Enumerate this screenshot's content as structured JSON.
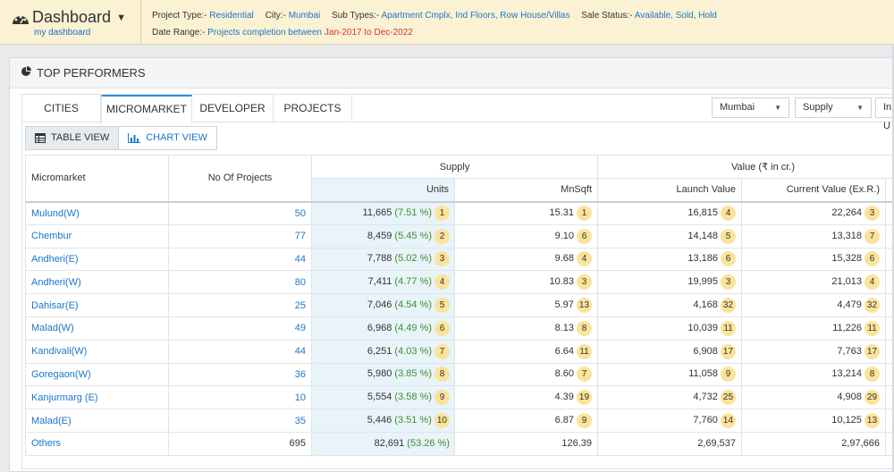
{
  "header": {
    "title": "Dashboard",
    "subtitle": "my dashboard",
    "filters": {
      "project_type_label": "Project Type:-",
      "project_type": "Residential",
      "city_label": "City:-",
      "city": "Mumbai",
      "sub_types_label": "Sub Types:-",
      "sub_types": "Apartment Cmplx, Ind Floors, Row House/Villas",
      "sale_status_label": "Sale Status:-",
      "sale_status": "Available, Sold, Hold",
      "date_range_label": "Date Range:-",
      "date_range_text": "Projects completion between",
      "date_range_value": "Jan-2017 to Dec-2022"
    }
  },
  "panel": {
    "title": "TOP PERFORMERS",
    "tabs": [
      {
        "label": "CITIES"
      },
      {
        "label": "MICROMARKET"
      },
      {
        "label": "DEVELOPER"
      },
      {
        "label": "PROJECTS"
      }
    ],
    "active_tab": "MICROMARKET",
    "selects": {
      "city": "Mumbai",
      "metric": "Supply",
      "unit": "In U"
    },
    "views": {
      "table": "TABLE VIEW",
      "chart": "CHART VIEW"
    }
  },
  "table": {
    "headers": {
      "micromarket": "Micromarket",
      "projects": "No Of Projects",
      "supply": "Supply",
      "units": "Units",
      "mnsqft": "MnSqft",
      "value": "Value (₹ in cr.)",
      "launch_value": "Launch Value",
      "current_value": "Current Value (Ex.R.)"
    },
    "rows": [
      {
        "name": "Mulund(W)",
        "projects": "50",
        "units": "11,665",
        "units_pct": "(7.51 %)",
        "units_rank": "1",
        "mnsqft": "15.31",
        "mnsqft_rank": "1",
        "launch": "16,815",
        "launch_rank": "4",
        "current": "22,264",
        "current_rank": "3"
      },
      {
        "name": "Chembur",
        "projects": "77",
        "units": "8,459",
        "units_pct": "(5.45 %)",
        "units_rank": "2",
        "mnsqft": "9.10",
        "mnsqft_rank": "6",
        "launch": "14,148",
        "launch_rank": "5",
        "current": "13,318",
        "current_rank": "7"
      },
      {
        "name": "Andheri(E)",
        "projects": "44",
        "units": "7,788",
        "units_pct": "(5.02 %)",
        "units_rank": "3",
        "mnsqft": "9.68",
        "mnsqft_rank": "4",
        "launch": "13,186",
        "launch_rank": "6",
        "current": "15,328",
        "current_rank": "6"
      },
      {
        "name": "Andheri(W)",
        "projects": "80",
        "units": "7,411",
        "units_pct": "(4.77 %)",
        "units_rank": "4",
        "mnsqft": "10.83",
        "mnsqft_rank": "3",
        "launch": "19,995",
        "launch_rank": "3",
        "current": "21,013",
        "current_rank": "4"
      },
      {
        "name": "Dahisar(E)",
        "projects": "25",
        "units": "7,046",
        "units_pct": "(4.54 %)",
        "units_rank": "5",
        "mnsqft": "5.97",
        "mnsqft_rank": "13",
        "launch": "4,168",
        "launch_rank": "32",
        "current": "4,479",
        "current_rank": "32"
      },
      {
        "name": "Malad(W)",
        "projects": "49",
        "units": "6,968",
        "units_pct": "(4.49 %)",
        "units_rank": "6",
        "mnsqft": "8.13",
        "mnsqft_rank": "8",
        "launch": "10,039",
        "launch_rank": "11",
        "current": "11,226",
        "current_rank": "11"
      },
      {
        "name": "Kandivali(W)",
        "projects": "44",
        "units": "6,251",
        "units_pct": "(4.03 %)",
        "units_rank": "7",
        "mnsqft": "6.64",
        "mnsqft_rank": "11",
        "launch": "6,908",
        "launch_rank": "17",
        "current": "7,763",
        "current_rank": "17"
      },
      {
        "name": "Goregaon(W)",
        "projects": "36",
        "units": "5,980",
        "units_pct": "(3.85 %)",
        "units_rank": "8",
        "mnsqft": "8.60",
        "mnsqft_rank": "7",
        "launch": "11,058",
        "launch_rank": "9",
        "current": "13,214",
        "current_rank": "8"
      },
      {
        "name": "Kanjurmarg (E)",
        "projects": "10",
        "units": "5,554",
        "units_pct": "(3.58 %)",
        "units_rank": "9",
        "mnsqft": "4.39",
        "mnsqft_rank": "19",
        "launch": "4,732",
        "launch_rank": "25",
        "current": "4,908",
        "current_rank": "29"
      },
      {
        "name": "Malad(E)",
        "projects": "35",
        "units": "5,446",
        "units_pct": "(3.51 %)",
        "units_rank": "10",
        "mnsqft": "6.87",
        "mnsqft_rank": "9",
        "launch": "7,760",
        "launch_rank": "14",
        "current": "10,125",
        "current_rank": "13"
      }
    ],
    "others": {
      "name": "Others",
      "projects": "695",
      "units": "82,691",
      "units_pct": "(53.26 %)",
      "mnsqft": "126.39",
      "launch": "2,69,537",
      "current": "2,97,666"
    }
  },
  "colors": {
    "header_bg": "#fbf1d3",
    "link": "#1a77c9",
    "date_range": "#d9332e",
    "percent": "#3e8f2a",
    "rank_badge": "#fbe39b",
    "units_column": "#e8f3fa",
    "active_tab_border": "#2d8bd6"
  },
  "icons": {
    "dashboard": "speedometer-icon",
    "panel": "pie-chart-icon",
    "table_view": "table-grid-icon",
    "chart_view": "bar-chart-icon"
  }
}
